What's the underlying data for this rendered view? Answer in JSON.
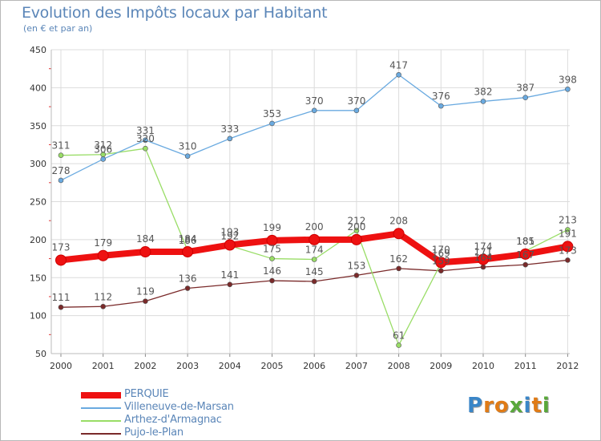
{
  "header": {
    "title": "Evolution des Impôts locaux par Habitant",
    "subtitle": "(en € et par an)"
  },
  "colors": {
    "grid": "#dcdcdc",
    "axis_text": "#333333",
    "label_text": "#555555",
    "tick_marks": "#dd3333"
  },
  "chart_data": {
    "type": "line",
    "title": "Evolution des Impôts locaux par Habitant",
    "subtitle": "(en € et par an)",
    "x": [
      "2000",
      "2001",
      "2002",
      "2003",
      "2004",
      "2005",
      "2006",
      "2007",
      "2008",
      "2009",
      "2010",
      "2011",
      "2012"
    ],
    "ylim": [
      50,
      450
    ],
    "yticks": [
      50,
      100,
      150,
      200,
      250,
      300,
      350,
      400,
      450
    ],
    "grid": true,
    "legend_position": "bottom-left",
    "series": [
      {
        "name": "Pujo-le-Plan",
        "color": "#7a2a2a",
        "values": [
          111,
          112,
          119,
          136,
          141,
          146,
          145,
          153,
          162,
          159,
          164,
          167,
          173
        ],
        "labels": [
          "111",
          "112",
          "119",
          "136",
          "141",
          "146",
          "145",
          "153",
          "162",
          "159",
          "164",
          "167",
          "173"
        ]
      },
      {
        "name": "Arthez-d'Armagnac",
        "color": "#99dd66",
        "values": [
          311,
          312,
          320,
          186,
          192,
          175,
          174,
          212,
          61,
          169,
          171,
          185,
          213
        ],
        "labels": [
          "311",
          "312",
          "320",
          "186",
          "192",
          "175",
          "174",
          "212",
          "61",
          "169",
          "171",
          "185",
          "213"
        ]
      },
      {
        "name": "Villeneuve-de-Marsan",
        "color": "#6aaae0",
        "values": [
          278,
          306,
          331,
          310,
          333,
          353,
          370,
          370,
          417,
          376,
          382,
          387,
          398
        ],
        "labels": [
          "278",
          "306",
          "331",
          "310",
          "333",
          "353",
          "370",
          "370",
          "417",
          "376",
          "382",
          "387",
          "398"
        ]
      },
      {
        "name": "PERQUIE",
        "color": "#ee1111",
        "values": [
          173,
          179,
          184,
          184,
          193,
          199,
          200,
          200,
          208,
          170,
          174,
          181,
          191
        ],
        "labels": [
          "173",
          "179",
          "184",
          "184",
          "193",
          "199",
          "200",
          "200",
          "208",
          "170",
          "174",
          "181",
          "191"
        ]
      }
    ]
  },
  "legend": {
    "items": [
      {
        "label": "PERQUIE",
        "color": "#ee1111"
      },
      {
        "label": "Villeneuve-de-Marsan",
        "color": "#6aaae0"
      },
      {
        "label": "Arthez-d'Armagnac",
        "color": "#99dd66"
      },
      {
        "label": "Pujo-le-Plan",
        "color": "#7a2a2a"
      }
    ]
  },
  "logo": {
    "letters": [
      "P",
      "r",
      "o",
      "x",
      "i",
      "t",
      "i"
    ],
    "colors": [
      "#3a86c8",
      "#e07b16",
      "#e07b16",
      "#58a83a",
      "#3a86c8",
      "#e07b16",
      "#58a83a"
    ]
  }
}
